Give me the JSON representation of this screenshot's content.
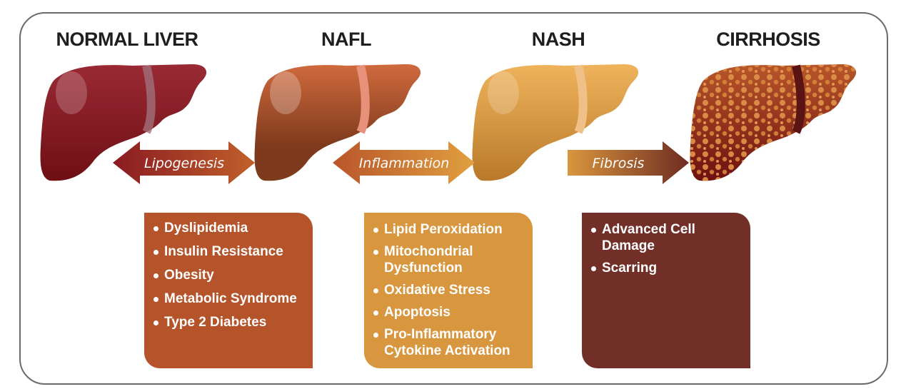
{
  "stages": [
    {
      "title": "NORMAL LIVER",
      "color": "#8a1a22"
    },
    {
      "title": "NAFL",
      "color": "#b9552a"
    },
    {
      "title": "NASH",
      "color": "#e0a24a"
    },
    {
      "title": "CIRRHOSIS",
      "color": "#8c1e1a"
    }
  ],
  "transitions": [
    {
      "label": "Lipogenesis",
      "type": "double-arrow"
    },
    {
      "label": "Inflammation",
      "type": "double-arrow"
    },
    {
      "label": "Fibrosis",
      "type": "single-arrow"
    }
  ],
  "factor_boxes": [
    {
      "color": "#b5532a",
      "items": [
        "Dyslipidemia",
        "Insulin Resistance",
        "Obesity",
        "Metabolic Syndrome",
        "Type 2 Diabetes"
      ]
    },
    {
      "color": "#d8963e",
      "items": [
        "Lipid Peroxidation",
        "Mitochondrial Dysfunction",
        "Oxidative Stress",
        "Apoptosis",
        "Pro-Inflammatory Cytokine Activation"
      ]
    },
    {
      "color": "#722f28",
      "items": [
        "Advanced Cell Damage",
        "Scarring"
      ]
    }
  ]
}
